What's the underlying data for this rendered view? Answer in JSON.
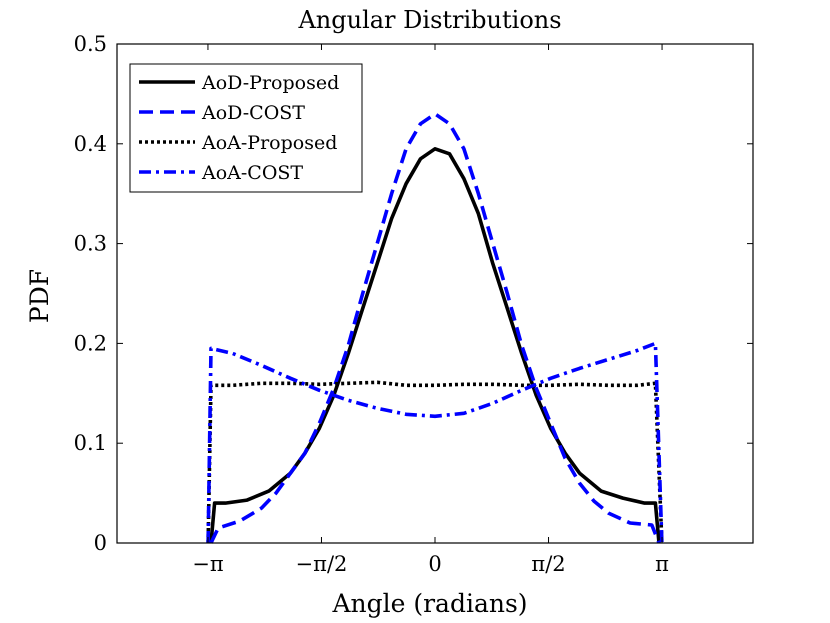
{
  "chart_data": {
    "type": "line",
    "title": "Angular Distributions",
    "xlabel": "Angle (radians)",
    "ylabel": "PDF",
    "xlim": [
      -4.4,
      4.4
    ],
    "ylim": [
      0,
      0.5
    ],
    "x_ticks": [
      {
        "value": -3.14159,
        "label": "−π"
      },
      {
        "value": -1.5708,
        "label": "−π/2"
      },
      {
        "value": 0,
        "label": "0"
      },
      {
        "value": 1.5708,
        "label": "π/2"
      },
      {
        "value": 3.14159,
        "label": "π"
      }
    ],
    "y_ticks": [
      {
        "value": 0,
        "label": "0"
      },
      {
        "value": 0.1,
        "label": "0.1"
      },
      {
        "value": 0.2,
        "label": "0.2"
      },
      {
        "value": 0.3,
        "label": "0.3"
      },
      {
        "value": 0.4,
        "label": "0.4"
      },
      {
        "value": 0.5,
        "label": "0.5"
      }
    ],
    "grid": false,
    "legend_position": "top-left",
    "series": [
      {
        "name": "AoD-Proposed",
        "color": "#000000",
        "style": "solid",
        "x": [
          -3.1,
          -3.05,
          -2.9,
          -2.6,
          -2.3,
          -2.0,
          -1.8,
          -1.6,
          -1.4,
          -1.2,
          -1.0,
          -0.8,
          -0.6,
          -0.4,
          -0.2,
          0,
          0.2,
          0.4,
          0.6,
          0.8,
          1.0,
          1.2,
          1.4,
          1.6,
          1.8,
          2.0,
          2.3,
          2.6,
          2.9,
          3.05,
          3.1
        ],
        "y": [
          0.0,
          0.04,
          0.04,
          0.043,
          0.052,
          0.07,
          0.09,
          0.115,
          0.148,
          0.19,
          0.235,
          0.28,
          0.325,
          0.36,
          0.385,
          0.395,
          0.39,
          0.365,
          0.33,
          0.28,
          0.235,
          0.19,
          0.148,
          0.115,
          0.09,
          0.07,
          0.052,
          0.045,
          0.04,
          0.04,
          0.0
        ]
      },
      {
        "name": "AoD-COST",
        "color": "#0000ff",
        "style": "dashed",
        "x": [
          -3.1,
          -3.0,
          -2.7,
          -2.4,
          -2.2,
          -2.0,
          -1.8,
          -1.6,
          -1.4,
          -1.2,
          -1.0,
          -0.8,
          -0.6,
          -0.4,
          -0.2,
          0,
          0.2,
          0.4,
          0.6,
          0.8,
          1.0,
          1.2,
          1.4,
          1.6,
          1.8,
          2.0,
          2.2,
          2.4,
          2.7,
          3.0,
          3.1
        ],
        "y": [
          0.0,
          0.015,
          0.022,
          0.035,
          0.05,
          0.07,
          0.09,
          0.12,
          0.155,
          0.198,
          0.25,
          0.3,
          0.35,
          0.395,
          0.42,
          0.43,
          0.42,
          0.395,
          0.35,
          0.3,
          0.25,
          0.198,
          0.155,
          0.12,
          0.085,
          0.06,
          0.042,
          0.03,
          0.02,
          0.018,
          0.0
        ]
      },
      {
        "name": "AoA-Proposed",
        "color": "#000000",
        "style": "dotted",
        "x": [
          -3.14,
          -3.1,
          -2.8,
          -2.4,
          -2.0,
          -1.6,
          -1.2,
          -0.8,
          -0.4,
          0,
          0.4,
          0.8,
          1.2,
          1.6,
          2.0,
          2.4,
          2.8,
          3.05,
          3.14
        ],
        "y": [
          0.0,
          0.158,
          0.158,
          0.16,
          0.16,
          0.159,
          0.16,
          0.161,
          0.158,
          0.158,
          0.159,
          0.159,
          0.158,
          0.158,
          0.159,
          0.158,
          0.158,
          0.16,
          0.0
        ]
      },
      {
        "name": "AoA-COST",
        "color": "#0000ff",
        "style": "dashdot",
        "x": [
          -3.14,
          -3.1,
          -2.8,
          -2.4,
          -2.0,
          -1.6,
          -1.2,
          -0.8,
          -0.4,
          0,
          0.4,
          0.8,
          1.2,
          1.6,
          2.0,
          2.4,
          2.8,
          3.05,
          3.14
        ],
        "y": [
          0.0,
          0.195,
          0.19,
          0.178,
          0.165,
          0.153,
          0.143,
          0.135,
          0.129,
          0.127,
          0.13,
          0.14,
          0.153,
          0.165,
          0.175,
          0.184,
          0.193,
          0.2,
          0.0
        ]
      }
    ]
  }
}
